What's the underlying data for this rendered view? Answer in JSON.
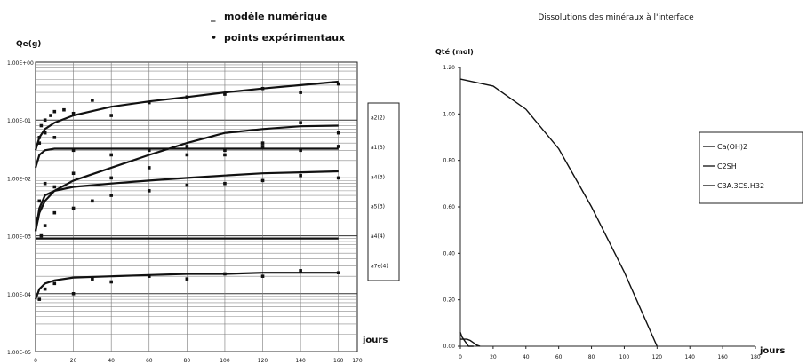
{
  "chart_data": [
    {
      "type": "line",
      "title": "",
      "legend_items": [
        {
          "marker": "_",
          "label": "modèle numérique"
        },
        {
          "marker": "•",
          "label": "points expérimentaux"
        }
      ],
      "ylabel": "Qe(g)",
      "xlabel": "jours",
      "xlim": [
        0,
        170
      ],
      "x_ticks": [
        "0",
        "20",
        "40",
        "60",
        "80",
        "100",
        "120",
        "140",
        "160",
        "170"
      ],
      "y_scale": "log",
      "ylim": [
        1e-05,
        1
      ],
      "y_ticks": [
        "1.00E+00",
        "1.00E-01",
        "1.00E-02",
        "1.00E-03",
        "1.00E-04",
        "1.00E-05"
      ],
      "legend_placement": "right",
      "series": [
        {
          "name": "a2(2)",
          "x": [
            0,
            2,
            5,
            10,
            20,
            40,
            60,
            80,
            100,
            120,
            140,
            160
          ],
          "y": [
            0.03,
            0.05,
            0.07,
            0.09,
            0.12,
            0.17,
            0.21,
            0.25,
            0.3,
            0.35,
            0.4,
            0.46
          ]
        },
        {
          "name": "a1(3)",
          "x": [
            0,
            2,
            5,
            10,
            20,
            40,
            60,
            80,
            100,
            120,
            140,
            160
          ],
          "y": [
            0.015,
            0.025,
            0.03,
            0.032,
            0.032,
            0.032,
            0.032,
            0.032,
            0.032,
            0.032,
            0.032,
            0.032
          ]
        },
        {
          "name": "a4(3)",
          "x": [
            0,
            2,
            5,
            10,
            20,
            40,
            60,
            80,
            100,
            120,
            140,
            160
          ],
          "y": [
            0.0012,
            0.0025,
            0.004,
            0.006,
            0.009,
            0.015,
            0.025,
            0.04,
            0.06,
            0.07,
            0.078,
            0.08
          ]
        },
        {
          "name": "a5(3)",
          "x": [
            0,
            2,
            5,
            10,
            20,
            40,
            60,
            80,
            100,
            120,
            140,
            160
          ],
          "y": [
            0.0012,
            0.003,
            0.005,
            0.006,
            0.007,
            0.008,
            0.009,
            0.01,
            0.011,
            0.012,
            0.0125,
            0.013
          ]
        },
        {
          "name": "a4(4)",
          "x": [
            0,
            2,
            5,
            10,
            20,
            40,
            60,
            80,
            100,
            120,
            140,
            160
          ],
          "y": [
            0.0009,
            0.0009,
            0.0009,
            0.0009,
            0.0009,
            0.0009,
            0.0009,
            0.0009,
            0.0009,
            0.0009,
            0.0009,
            0.0009
          ]
        },
        {
          "name": "a7e(4)",
          "x": [
            0,
            2,
            5,
            10,
            20,
            40,
            60,
            80,
            100,
            120,
            140,
            160
          ],
          "y": [
            8e-05,
            0.00012,
            0.00015,
            0.00017,
            0.00019,
            0.0002,
            0.00021,
            0.00022,
            0.00022,
            0.00023,
            0.00023,
            0.00023
          ]
        }
      ],
      "points": {
        "x": [
          2,
          3,
          5,
          8,
          10,
          15,
          20,
          30,
          40,
          60,
          80,
          100,
          120,
          140,
          160,
          2,
          5,
          10,
          20,
          40,
          60,
          80,
          100,
          120,
          140,
          160,
          1,
          2,
          5,
          10,
          20,
          40,
          60,
          80,
          100,
          120,
          140,
          160,
          3,
          5,
          10,
          20,
          30,
          40,
          60,
          80,
          100,
          120,
          140,
          160,
          2,
          5,
          10,
          20,
          30,
          40,
          60,
          80,
          100,
          120,
          140,
          160
        ],
        "y": [
          0.05,
          0.08,
          0.1,
          0.12,
          0.14,
          0.15,
          0.13,
          0.22,
          0.12,
          0.2,
          0.25,
          0.28,
          0.35,
          0.3,
          0.42,
          0.04,
          0.06,
          0.05,
          0.03,
          0.025,
          0.03,
          0.025,
          0.03,
          0.035,
          0.03,
          0.035,
          0.002,
          0.004,
          0.008,
          0.007,
          0.012,
          0.01,
          0.015,
          0.035,
          0.025,
          0.04,
          0.09,
          0.06,
          0.001,
          0.0015,
          0.0025,
          0.003,
          0.004,
          0.005,
          0.006,
          0.0075,
          0.008,
          0.009,
          0.011,
          0.01,
          8e-05,
          0.00012,
          0.00015,
          0.0001,
          0.00018,
          0.00016,
          0.0002,
          0.00018,
          0.00022,
          0.0002,
          0.00025,
          0.00023
        ]
      }
    },
    {
      "type": "line",
      "title": "Dissolutions des minéraux à l'interface",
      "ylabel": "Qté (mol)",
      "xlabel": "jours",
      "xlim": [
        0,
        180
      ],
      "x_ticks": [
        "0",
        "20",
        "40",
        "60",
        "80",
        "100",
        "120",
        "140",
        "160",
        "180"
      ],
      "ylim": [
        0,
        1.2
      ],
      "y_ticks": [
        "0.00",
        "0.20",
        "0.40",
        "0.60",
        "0.80",
        "1.00",
        "1.20"
      ],
      "legend_placement": "right",
      "series": [
        {
          "name": "Ca(OH)2",
          "x": [
            0,
            20,
            40,
            60,
            80,
            100,
            120
          ],
          "y": [
            1.15,
            1.12,
            1.02,
            0.85,
            0.6,
            0.32,
            0.0
          ]
        },
        {
          "name": "C2SH",
          "x": [
            0,
            1,
            3,
            5,
            8
          ],
          "y": [
            0.06,
            0.04,
            0.02,
            0.0,
            0.0
          ]
        },
        {
          "name": "C3A.3CS.H32",
          "x": [
            0,
            4,
            6,
            8,
            10,
            12
          ],
          "y": [
            0.03,
            0.03,
            0.025,
            0.015,
            0.005,
            0.0
          ]
        }
      ]
    }
  ]
}
